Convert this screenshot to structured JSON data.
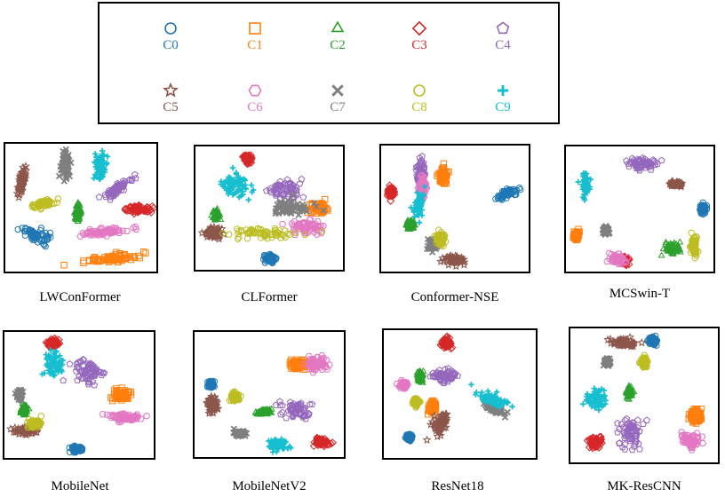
{
  "legend": {
    "classes": [
      {
        "label": "C0",
        "marker": "circle",
        "color": "#1f77b4"
      },
      {
        "label": "C1",
        "marker": "square",
        "color": "#ff7f0e"
      },
      {
        "label": "C2",
        "marker": "triangle",
        "color": "#2ca02c"
      },
      {
        "label": "C3",
        "marker": "diamond",
        "color": "#d62728"
      },
      {
        "label": "C4",
        "marker": "pentagon",
        "color": "#9467bd"
      },
      {
        "label": "C5",
        "marker": "star",
        "color": "#8c564b"
      },
      {
        "label": "C6",
        "marker": "hexagon",
        "color": "#e377c2"
      },
      {
        "label": "C7",
        "marker": "x",
        "color": "#7f7f7f"
      },
      {
        "label": "C8",
        "marker": "circle",
        "color": "#bcbd22"
      },
      {
        "label": "C9",
        "marker": "plus",
        "color": "#17becf"
      }
    ]
  },
  "chart_data": [
    {
      "type": "scatter",
      "title": "LWConFormer",
      "clusters": [
        {
          "cls": 0,
          "x": 0.2,
          "y": 0.72,
          "sx": 0.1,
          "sy": 0.05,
          "angle": 30
        },
        {
          "cls": 1,
          "x": 0.7,
          "y": 0.9,
          "sx": 0.18,
          "sy": 0.03,
          "angle": -8
        },
        {
          "cls": 2,
          "x": 0.48,
          "y": 0.54,
          "sx": 0.02,
          "sy": 0.06,
          "angle": 0
        },
        {
          "cls": 3,
          "x": 0.88,
          "y": 0.51,
          "sx": 0.1,
          "sy": 0.025,
          "angle": 0
        },
        {
          "cls": 4,
          "x": 0.75,
          "y": 0.35,
          "sx": 0.1,
          "sy": 0.03,
          "angle": -35
        },
        {
          "cls": 5,
          "x": 0.11,
          "y": 0.28,
          "sx": 0.02,
          "sy": 0.11,
          "angle": 10
        },
        {
          "cls": 6,
          "x": 0.65,
          "y": 0.69,
          "sx": 0.16,
          "sy": 0.03,
          "angle": -10
        },
        {
          "cls": 7,
          "x": 0.4,
          "y": 0.18,
          "sx": 0.03,
          "sy": 0.11,
          "angle": 0
        },
        {
          "cls": 8,
          "x": 0.25,
          "y": 0.47,
          "sx": 0.07,
          "sy": 0.03,
          "angle": -5
        },
        {
          "cls": 9,
          "x": 0.63,
          "y": 0.18,
          "sx": 0.05,
          "sy": 0.12,
          "angle": 0
        }
      ]
    },
    {
      "type": "scatter",
      "title": "CLFormer",
      "clusters": [
        {
          "cls": 0,
          "x": 0.51,
          "y": 0.91,
          "sx": 0.04,
          "sy": 0.03,
          "angle": 0
        },
        {
          "cls": 1,
          "x": 0.84,
          "y": 0.5,
          "sx": 0.06,
          "sy": 0.04,
          "angle": 0
        },
        {
          "cls": 2,
          "x": 0.14,
          "y": 0.56,
          "sx": 0.02,
          "sy": 0.04,
          "angle": 0
        },
        {
          "cls": 3,
          "x": 0.35,
          "y": 0.1,
          "sx": 0.03,
          "sy": 0.04,
          "angle": 0
        },
        {
          "cls": 4,
          "x": 0.6,
          "y": 0.35,
          "sx": 0.12,
          "sy": 0.08,
          "angle": 0
        },
        {
          "cls": 5,
          "x": 0.12,
          "y": 0.7,
          "sx": 0.06,
          "sy": 0.04,
          "angle": 0
        },
        {
          "cls": 6,
          "x": 0.76,
          "y": 0.65,
          "sx": 0.12,
          "sy": 0.06,
          "angle": 0
        },
        {
          "cls": 7,
          "x": 0.64,
          "y": 0.5,
          "sx": 0.12,
          "sy": 0.06,
          "angle": 0
        },
        {
          "cls": 8,
          "x": 0.45,
          "y": 0.7,
          "sx": 0.22,
          "sy": 0.04,
          "angle": 0
        },
        {
          "cls": 9,
          "x": 0.28,
          "y": 0.32,
          "sx": 0.1,
          "sy": 0.09,
          "angle": 0
        }
      ]
    },
    {
      "type": "scatter",
      "title": "Conformer-NSE",
      "clusters": [
        {
          "cls": 0,
          "x": 0.86,
          "y": 0.38,
          "sx": 0.08,
          "sy": 0.03,
          "angle": -25
        },
        {
          "cls": 1,
          "x": 0.42,
          "y": 0.24,
          "sx": 0.03,
          "sy": 0.06,
          "angle": 0
        },
        {
          "cls": 2,
          "x": 0.2,
          "y": 0.63,
          "sx": 0.03,
          "sy": 0.04,
          "angle": 0
        },
        {
          "cls": 3,
          "x": 0.07,
          "y": 0.37,
          "sx": 0.02,
          "sy": 0.04,
          "angle": 0
        },
        {
          "cls": 4,
          "x": 0.27,
          "y": 0.23,
          "sx": 0.03,
          "sy": 0.13,
          "angle": 0
        },
        {
          "cls": 5,
          "x": 0.5,
          "y": 0.91,
          "sx": 0.07,
          "sy": 0.03,
          "angle": 0
        },
        {
          "cls": 6,
          "x": 0.28,
          "y": 0.33,
          "sx": 0.02,
          "sy": 0.09,
          "angle": 0
        },
        {
          "cls": 7,
          "x": 0.35,
          "y": 0.78,
          "sx": 0.03,
          "sy": 0.04,
          "angle": 0
        },
        {
          "cls": 8,
          "x": 0.4,
          "y": 0.74,
          "sx": 0.03,
          "sy": 0.05,
          "angle": 0
        },
        {
          "cls": 9,
          "x": 0.25,
          "y": 0.47,
          "sx": 0.03,
          "sy": 0.1,
          "angle": 10
        }
      ]
    },
    {
      "type": "scatter",
      "title": "MCSwin-T",
      "clusters": [
        {
          "cls": 0,
          "x": 0.93,
          "y": 0.5,
          "sx": 0.02,
          "sy": 0.04,
          "angle": 0
        },
        {
          "cls": 1,
          "x": 0.07,
          "y": 0.71,
          "sx": 0.02,
          "sy": 0.04,
          "angle": 0
        },
        {
          "cls": 2,
          "x": 0.72,
          "y": 0.82,
          "sx": 0.05,
          "sy": 0.05,
          "angle": 0
        },
        {
          "cls": 3,
          "x": 0.4,
          "y": 0.91,
          "sx": 0.03,
          "sy": 0.03,
          "angle": 0
        },
        {
          "cls": 4,
          "x": 0.52,
          "y": 0.14,
          "sx": 0.1,
          "sy": 0.05,
          "angle": 0
        },
        {
          "cls": 5,
          "x": 0.74,
          "y": 0.3,
          "sx": 0.04,
          "sy": 0.02,
          "angle": 0
        },
        {
          "cls": 6,
          "x": 0.35,
          "y": 0.9,
          "sx": 0.06,
          "sy": 0.04,
          "angle": 0
        },
        {
          "cls": 7,
          "x": 0.27,
          "y": 0.67,
          "sx": 0.02,
          "sy": 0.03,
          "angle": 0
        },
        {
          "cls": 8,
          "x": 0.87,
          "y": 0.8,
          "sx": 0.02,
          "sy": 0.07,
          "angle": 0
        },
        {
          "cls": 9,
          "x": 0.13,
          "y": 0.3,
          "sx": 0.03,
          "sy": 0.09,
          "angle": 0
        }
      ]
    },
    {
      "type": "scatter",
      "title": "MobileNet",
      "clusters": [
        {
          "cls": 0,
          "x": 0.48,
          "y": 0.93,
          "sx": 0.04,
          "sy": 0.025,
          "angle": 0
        },
        {
          "cls": 1,
          "x": 0.78,
          "y": 0.5,
          "sx": 0.05,
          "sy": 0.04,
          "angle": 0
        },
        {
          "cls": 2,
          "x": 0.13,
          "y": 0.62,
          "sx": 0.02,
          "sy": 0.04,
          "angle": 0
        },
        {
          "cls": 3,
          "x": 0.33,
          "y": 0.09,
          "sx": 0.04,
          "sy": 0.03,
          "angle": 0
        },
        {
          "cls": 4,
          "x": 0.55,
          "y": 0.32,
          "sx": 0.1,
          "sy": 0.09,
          "angle": 0
        },
        {
          "cls": 5,
          "x": 0.15,
          "y": 0.78,
          "sx": 0.08,
          "sy": 0.03,
          "angle": -5
        },
        {
          "cls": 6,
          "x": 0.8,
          "y": 0.68,
          "sx": 0.1,
          "sy": 0.03,
          "angle": 0
        },
        {
          "cls": 7,
          "x": 0.1,
          "y": 0.5,
          "sx": 0.02,
          "sy": 0.04,
          "angle": 0
        },
        {
          "cls": 8,
          "x": 0.2,
          "y": 0.73,
          "sx": 0.05,
          "sy": 0.03,
          "angle": 0
        },
        {
          "cls": 9,
          "x": 0.33,
          "y": 0.27,
          "sx": 0.06,
          "sy": 0.1,
          "angle": 0
        }
      ]
    },
    {
      "type": "scatter",
      "title": "MobileNetV2",
      "clusters": [
        {
          "cls": 0,
          "x": 0.11,
          "y": 0.42,
          "sx": 0.02,
          "sy": 0.03,
          "angle": 0
        },
        {
          "cls": 1,
          "x": 0.7,
          "y": 0.26,
          "sx": 0.06,
          "sy": 0.04,
          "angle": 0
        },
        {
          "cls": 2,
          "x": 0.46,
          "y": 0.64,
          "sx": 0.05,
          "sy": 0.02,
          "angle": -10
        },
        {
          "cls": 3,
          "x": 0.85,
          "y": 0.88,
          "sx": 0.05,
          "sy": 0.03,
          "angle": 0
        },
        {
          "cls": 4,
          "x": 0.68,
          "y": 0.62,
          "sx": 0.11,
          "sy": 0.06,
          "angle": 0
        },
        {
          "cls": 5,
          "x": 0.12,
          "y": 0.58,
          "sx": 0.03,
          "sy": 0.07,
          "angle": 0
        },
        {
          "cls": 6,
          "x": 0.82,
          "y": 0.25,
          "sx": 0.07,
          "sy": 0.06,
          "angle": 0
        },
        {
          "cls": 7,
          "x": 0.3,
          "y": 0.81,
          "sx": 0.04,
          "sy": 0.02,
          "angle": 0
        },
        {
          "cls": 8,
          "x": 0.27,
          "y": 0.52,
          "sx": 0.03,
          "sy": 0.03,
          "angle": 0
        },
        {
          "cls": 9,
          "x": 0.55,
          "y": 0.9,
          "sx": 0.07,
          "sy": 0.05,
          "angle": 0
        }
      ]
    },
    {
      "type": "scatter",
      "title": "ResNet18",
      "clusters": [
        {
          "cls": 0,
          "x": 0.17,
          "y": 0.84,
          "sx": 0.02,
          "sy": 0.03,
          "angle": 0
        },
        {
          "cls": 1,
          "x": 0.32,
          "y": 0.6,
          "sx": 0.03,
          "sy": 0.05,
          "angle": 0
        },
        {
          "cls": 2,
          "x": 0.24,
          "y": 0.36,
          "sx": 0.02,
          "sy": 0.04,
          "angle": 0
        },
        {
          "cls": 3,
          "x": 0.41,
          "y": 0.1,
          "sx": 0.03,
          "sy": 0.04,
          "angle": 0
        },
        {
          "cls": 4,
          "x": 0.4,
          "y": 0.36,
          "sx": 0.08,
          "sy": 0.04,
          "angle": 0
        },
        {
          "cls": 5,
          "x": 0.37,
          "y": 0.74,
          "sx": 0.04,
          "sy": 0.09,
          "angle": 15
        },
        {
          "cls": 6,
          "x": 0.13,
          "y": 0.43,
          "sx": 0.03,
          "sy": 0.03,
          "angle": 0
        },
        {
          "cls": 7,
          "x": 0.73,
          "y": 0.62,
          "sx": 0.07,
          "sy": 0.02,
          "angle": 30
        },
        {
          "cls": 8,
          "x": 0.21,
          "y": 0.56,
          "sx": 0.02,
          "sy": 0.03,
          "angle": 0
        },
        {
          "cls": 9,
          "x": 0.72,
          "y": 0.54,
          "sx": 0.12,
          "sy": 0.04,
          "angle": 25
        }
      ]
    },
    {
      "type": "scatter",
      "title": "MK-ResCNN",
      "clusters": [
        {
          "cls": 0,
          "x": 0.56,
          "y": 0.09,
          "sx": 0.03,
          "sy": 0.03,
          "angle": 0
        },
        {
          "cls": 1,
          "x": 0.85,
          "y": 0.65,
          "sx": 0.05,
          "sy": 0.06,
          "angle": 0
        },
        {
          "cls": 2,
          "x": 0.4,
          "y": 0.48,
          "sx": 0.02,
          "sy": 0.04,
          "angle": 0
        },
        {
          "cls": 3,
          "x": 0.17,
          "y": 0.85,
          "sx": 0.04,
          "sy": 0.04,
          "angle": 0
        },
        {
          "cls": 4,
          "x": 0.41,
          "y": 0.78,
          "sx": 0.08,
          "sy": 0.11,
          "angle": 0
        },
        {
          "cls": 5,
          "x": 0.35,
          "y": 0.11,
          "sx": 0.1,
          "sy": 0.03,
          "angle": 0
        },
        {
          "cls": 6,
          "x": 0.81,
          "y": 0.83,
          "sx": 0.06,
          "sy": 0.06,
          "angle": 0
        },
        {
          "cls": 7,
          "x": 0.25,
          "y": 0.25,
          "sx": 0.02,
          "sy": 0.03,
          "angle": 0
        },
        {
          "cls": 8,
          "x": 0.5,
          "y": 0.25,
          "sx": 0.02,
          "sy": 0.04,
          "angle": 0
        },
        {
          "cls": 9,
          "x": 0.18,
          "y": 0.53,
          "sx": 0.07,
          "sy": 0.07,
          "angle": 0
        }
      ]
    }
  ]
}
